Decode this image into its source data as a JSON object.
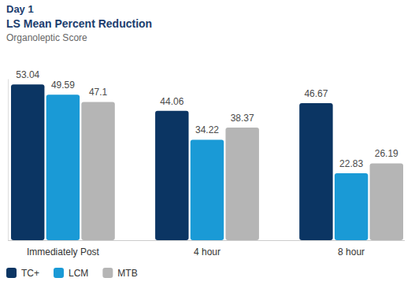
{
  "chart_data": {
    "type": "bar",
    "title": "Day 1",
    "subtitle": "LS Mean Percent Reduction",
    "ylabel": "Organoleptic Score",
    "categories": [
      "Immediately Post",
      "4 hour",
      "8 hour"
    ],
    "series": [
      {
        "name": "TC+",
        "color": "#0b3563",
        "values": [
          53.04,
          44.06,
          46.67
        ]
      },
      {
        "name": "LCM",
        "color": "#1a9ad6",
        "values": [
          49.59,
          34.22,
          22.83
        ]
      },
      {
        "name": "MTB",
        "color": "#b5b5b5",
        "values": [
          47.1,
          38.37,
          26.19
        ]
      }
    ],
    "ylim": [
      0,
      55
    ],
    "yticks": [],
    "grid": false,
    "legend": "bottom left",
    "data_labels": true,
    "tick_labels": "x"
  }
}
